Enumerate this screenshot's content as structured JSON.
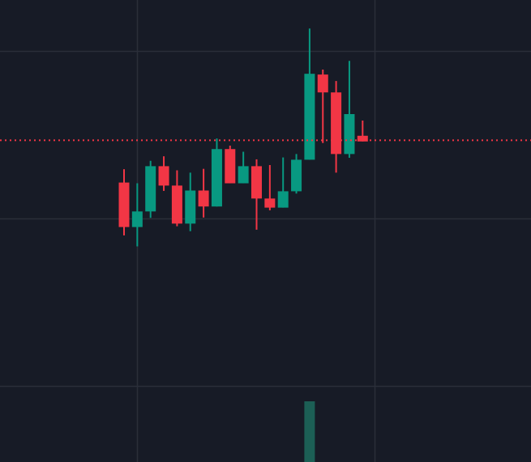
{
  "colors": {
    "background": "#171b26",
    "grid": "#2a2e39",
    "bullish": "#089981",
    "bearish": "#f23645",
    "volume_bullish": "#1c5f55",
    "last_price_line": "#f23645"
  },
  "chart_data": {
    "type": "candlestick",
    "grid": true,
    "price_range": [
      0,
      100
    ],
    "last_price": 63.1,
    "candles": [
      {
        "open": 52,
        "high": 55.5,
        "low": 38.1,
        "close": 40.3
      },
      {
        "open": 40.3,
        "high": 51.8,
        "low": 35.2,
        "close": 44.4
      },
      {
        "open": 44.4,
        "high": 57.7,
        "low": 42.7,
        "close": 56.3
      },
      {
        "open": 56.3,
        "high": 58.9,
        "low": 49.8,
        "close": 51.2
      },
      {
        "open": 51.2,
        "high": 55.2,
        "low": 40.5,
        "close": 41.2
      },
      {
        "open": 41.2,
        "high": 54.6,
        "low": 39.2,
        "close": 49.9
      },
      {
        "open": 49.9,
        "high": 55.6,
        "low": 42.8,
        "close": 45.7
      },
      {
        "open": 45.7,
        "high": 63.6,
        "low": 45.7,
        "close": 60.8
      },
      {
        "open": 60.8,
        "high": 61.7,
        "low": 51.8,
        "close": 51.8
      },
      {
        "open": 51.8,
        "high": 60.1,
        "low": 51.8,
        "close": 56.3
      },
      {
        "open": 56.3,
        "high": 58.1,
        "low": 39.6,
        "close": 47.8
      },
      {
        "open": 47.8,
        "high": 56.6,
        "low": 44.7,
        "close": 45.4
      },
      {
        "open": 45.4,
        "high": 58.6,
        "low": 45.4,
        "close": 49.7
      },
      {
        "open": 49.7,
        "high": 59.5,
        "low": 49.1,
        "close": 58
      },
      {
        "open": 58,
        "high": 92.5,
        "low": 58,
        "close": 80.6
      },
      {
        "open": 80.4,
        "high": 81.7,
        "low": 62.4,
        "close": 75.7
      },
      {
        "open": 75.7,
        "high": 78.7,
        "low": 54.6,
        "close": 59.5
      },
      {
        "open": 59.5,
        "high": 84,
        "low": 58.5,
        "close": 70
      },
      {
        "open": 64.3,
        "high": 68.3,
        "low": 62.8,
        "close": 62.8
      }
    ],
    "volume": [
      0,
      0,
      0,
      0,
      0,
      0,
      0,
      0,
      0,
      0,
      0,
      0,
      0,
      0,
      100,
      0,
      0,
      0,
      0
    ]
  }
}
